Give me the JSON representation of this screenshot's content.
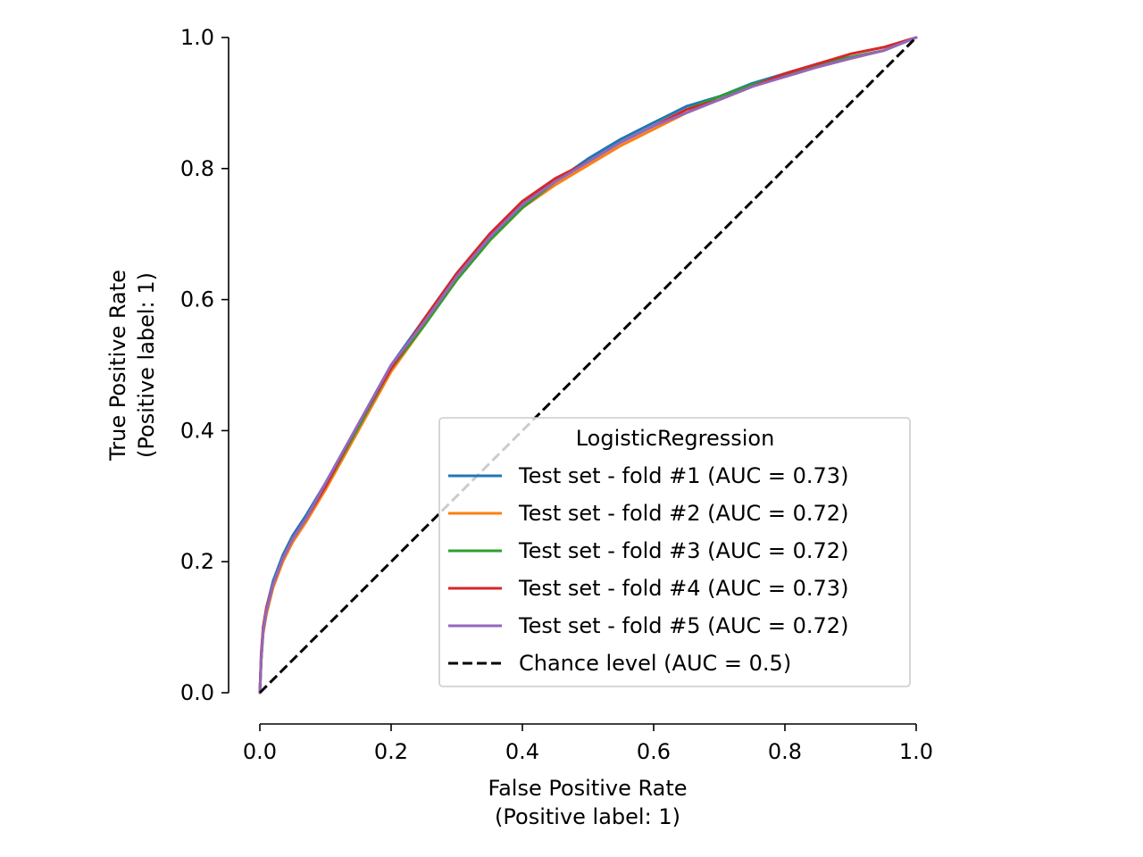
{
  "chart_data": {
    "type": "line",
    "xlabel": [
      "False Positive Rate",
      "(Positive label: 1)"
    ],
    "ylabel": [
      "True Positive Rate",
      "(Positive label: 1)"
    ],
    "xlim": [
      0.0,
      1.0
    ],
    "ylim": [
      0.0,
      1.0
    ],
    "x_ticks": [
      "0.0",
      "0.2",
      "0.4",
      "0.6",
      "0.8",
      "1.0"
    ],
    "y_ticks": [
      "0.0",
      "0.2",
      "0.4",
      "0.6",
      "0.8",
      "1.0"
    ],
    "grid": false,
    "legend": {
      "title": "LogisticRegression",
      "placement": "lower-right"
    },
    "series": [
      {
        "name": "Test set - fold #1 (AUC = 0.73)",
        "color": "#1f77b4",
        "style": "solid",
        "x": [
          0.0,
          0.002,
          0.005,
          0.01,
          0.02,
          0.035,
          0.05,
          0.07,
          0.1,
          0.15,
          0.2,
          0.25,
          0.3,
          0.35,
          0.4,
          0.45,
          0.5,
          0.55,
          0.6,
          0.65,
          0.7,
          0.75,
          0.8,
          0.85,
          0.9,
          0.95,
          1.0
        ],
        "y": [
          0.0,
          0.05,
          0.1,
          0.13,
          0.17,
          0.21,
          0.24,
          0.27,
          0.32,
          0.41,
          0.5,
          0.57,
          0.64,
          0.7,
          0.75,
          0.78,
          0.815,
          0.845,
          0.87,
          0.895,
          0.91,
          0.93,
          0.945,
          0.96,
          0.97,
          0.98,
          1.0
        ]
      },
      {
        "name": "Test set - fold #2 (AUC = 0.72)",
        "color": "#ff7f0e",
        "style": "solid",
        "x": [
          0.0,
          0.002,
          0.005,
          0.01,
          0.02,
          0.035,
          0.05,
          0.07,
          0.1,
          0.15,
          0.2,
          0.25,
          0.3,
          0.35,
          0.4,
          0.45,
          0.5,
          0.55,
          0.6,
          0.65,
          0.7,
          0.75,
          0.8,
          0.85,
          0.9,
          0.95,
          1.0
        ],
        "y": [
          0.0,
          0.05,
          0.09,
          0.12,
          0.16,
          0.2,
          0.23,
          0.26,
          0.31,
          0.4,
          0.49,
          0.56,
          0.63,
          0.69,
          0.74,
          0.775,
          0.805,
          0.835,
          0.86,
          0.885,
          0.905,
          0.925,
          0.94,
          0.955,
          0.968,
          0.98,
          1.0
        ]
      },
      {
        "name": "Test set - fold #3 (AUC = 0.72)",
        "color": "#2ca02c",
        "style": "solid",
        "x": [
          0.0,
          0.002,
          0.005,
          0.01,
          0.02,
          0.035,
          0.05,
          0.07,
          0.1,
          0.15,
          0.2,
          0.25,
          0.3,
          0.35,
          0.4,
          0.45,
          0.5,
          0.55,
          0.6,
          0.65,
          0.7,
          0.75,
          0.8,
          0.85,
          0.9,
          0.95,
          1.0
        ],
        "y": [
          0.0,
          0.05,
          0.095,
          0.125,
          0.165,
          0.205,
          0.235,
          0.265,
          0.315,
          0.405,
          0.495,
          0.56,
          0.63,
          0.69,
          0.74,
          0.78,
          0.81,
          0.84,
          0.865,
          0.89,
          0.91,
          0.928,
          0.943,
          0.958,
          0.97,
          0.98,
          1.0
        ]
      },
      {
        "name": "Test set - fold #4 (AUC = 0.73)",
        "color": "#d62728",
        "style": "solid",
        "x": [
          0.0,
          0.002,
          0.005,
          0.01,
          0.02,
          0.035,
          0.05,
          0.07,
          0.1,
          0.15,
          0.2,
          0.25,
          0.3,
          0.35,
          0.4,
          0.45,
          0.5,
          0.55,
          0.6,
          0.65,
          0.7,
          0.75,
          0.8,
          0.85,
          0.9,
          0.95,
          1.0
        ],
        "y": [
          0.0,
          0.06,
          0.1,
          0.13,
          0.165,
          0.205,
          0.235,
          0.265,
          0.315,
          0.41,
          0.495,
          0.57,
          0.64,
          0.7,
          0.75,
          0.785,
          0.81,
          0.84,
          0.865,
          0.89,
          0.905,
          0.925,
          0.945,
          0.96,
          0.975,
          0.985,
          1.0
        ]
      },
      {
        "name": "Test set - fold #5 (AUC = 0.72)",
        "color": "#9467bd",
        "style": "solid",
        "x": [
          0.0,
          0.002,
          0.005,
          0.01,
          0.02,
          0.035,
          0.05,
          0.07,
          0.1,
          0.15,
          0.2,
          0.25,
          0.3,
          0.35,
          0.4,
          0.45,
          0.5,
          0.55,
          0.6,
          0.65,
          0.7,
          0.75,
          0.8,
          0.85,
          0.9,
          0.95,
          1.0
        ],
        "y": [
          0.0,
          0.05,
          0.095,
          0.125,
          0.165,
          0.205,
          0.235,
          0.265,
          0.32,
          0.41,
          0.5,
          0.565,
          0.635,
          0.695,
          0.745,
          0.78,
          0.81,
          0.84,
          0.865,
          0.885,
          0.905,
          0.925,
          0.94,
          0.955,
          0.968,
          0.98,
          1.0
        ]
      },
      {
        "name": "Chance level (AUC = 0.5)",
        "color": "#000000",
        "style": "dashed",
        "x": [
          0.0,
          1.0
        ],
        "y": [
          0.0,
          1.0
        ]
      }
    ]
  }
}
